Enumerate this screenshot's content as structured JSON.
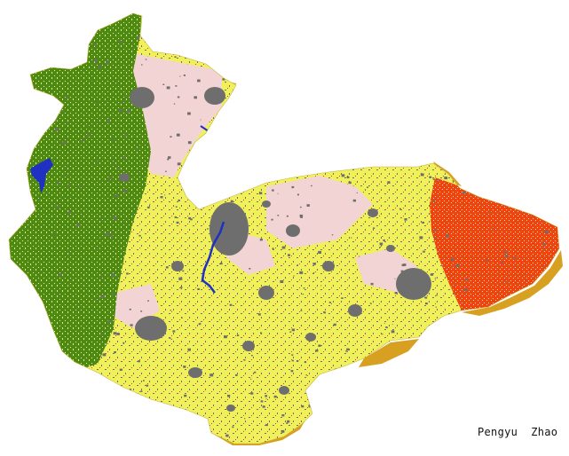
{
  "credit": "Pengyu  Zhao",
  "colors": {
    "background": "#ffffff",
    "forest": "#4f8a10",
    "cropland": "#f0f05a",
    "urban": "#6e6e6e",
    "shrub_grass": "#f2d4d4",
    "orchard": "#ee4411",
    "water": "#2030c0",
    "bare_sand": "#d8a020"
  },
  "map": {
    "name": "land-cover-map",
    "interactive": false
  }
}
